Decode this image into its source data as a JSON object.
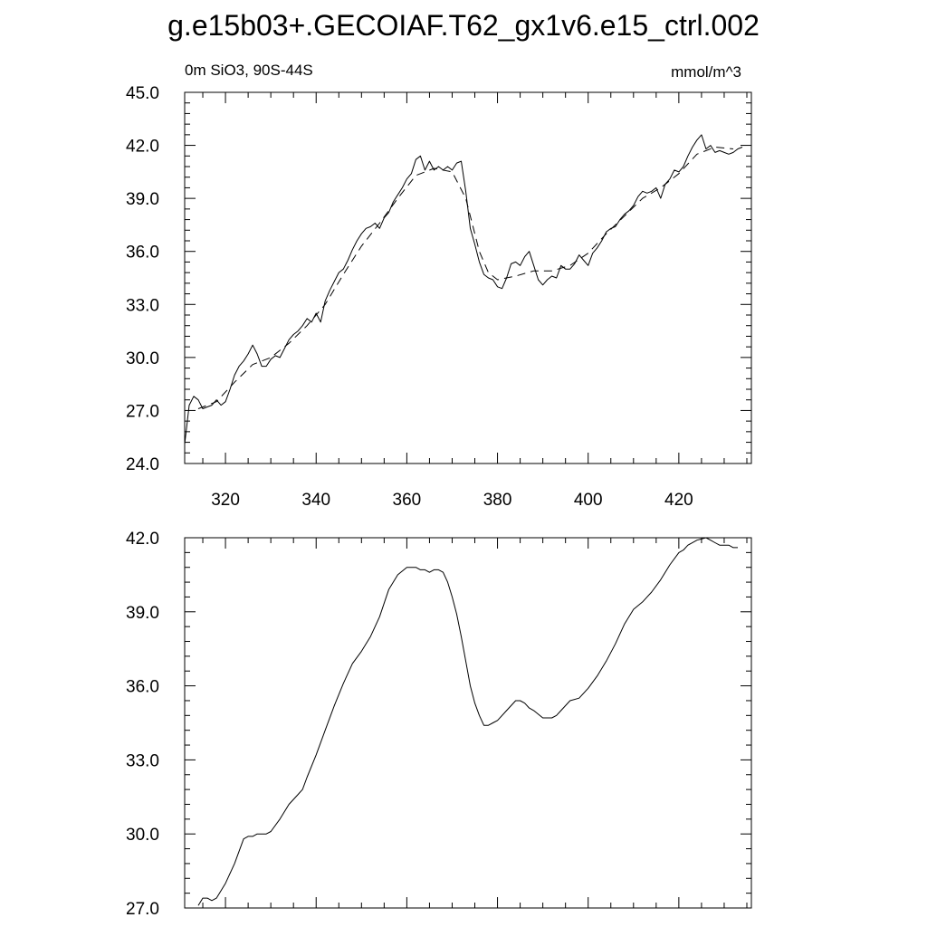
{
  "figure": {
    "title": "g.e15b03+.GECOIAF.T62_gx1v6.e15_ctrl.002"
  },
  "chart_data": [
    {
      "type": "line",
      "left_label": "0m SiO3, 90S-44S",
      "right_label": "mmol/m^3",
      "xlim": [
        311,
        436
      ],
      "ylim": [
        24,
        45
      ],
      "x_ticks": [
        320,
        340,
        360,
        380,
        400,
        420
      ],
      "x_tick_labels": [
        "320",
        "340",
        "360",
        "380",
        "400",
        "420"
      ],
      "y_ticks": [
        24,
        27,
        30,
        33,
        36,
        39,
        42,
        45
      ],
      "y_tick_labels": [
        "24.0",
        "27.0",
        "30.0",
        "33.0",
        "36.0",
        "39.0",
        "42.0",
        "45.0"
      ],
      "grid": false,
      "series": [
        {
          "style": "solid",
          "x": [
            311,
            312,
            313,
            314,
            315,
            316,
            317,
            318,
            319,
            320,
            321,
            322,
            323,
            324,
            325,
            326,
            327,
            328,
            329,
            330,
            331,
            332,
            333,
            334,
            335,
            336,
            337,
            338,
            339,
            340,
            341,
            342,
            343,
            344,
            345,
            346,
            347,
            348,
            349,
            350,
            351,
            352,
            353,
            354,
            355,
            356,
            357,
            358,
            359,
            360,
            361,
            362,
            363,
            364,
            365,
            366,
            367,
            368,
            369,
            370,
            371,
            372,
            373,
            374,
            375,
            376,
            377,
            378,
            379,
            380,
            381,
            382,
            383,
            384,
            385,
            386,
            387,
            388,
            389,
            390,
            391,
            392,
            393,
            394,
            395,
            396,
            397,
            398,
            399,
            400,
            401,
            402,
            403,
            404,
            405,
            406,
            407,
            408,
            409,
            410,
            411,
            412,
            413,
            414,
            415,
            416,
            417,
            418,
            419,
            420,
            421,
            422,
            423,
            424,
            425,
            426,
            427,
            428,
            429,
            430,
            431,
            432,
            433,
            434
          ],
          "y": [
            25.1,
            27.3,
            27.8,
            27.6,
            27.1,
            27.2,
            27.3,
            27.6,
            27.3,
            27.5,
            28.2,
            29.0,
            29.5,
            29.8,
            30.2,
            30.7,
            30.2,
            29.5,
            29.5,
            29.9,
            30.1,
            30.0,
            30.5,
            31.0,
            31.3,
            31.5,
            31.8,
            32.2,
            32.0,
            32.5,
            32.0,
            33.2,
            33.8,
            34.3,
            34.8,
            35.0,
            35.5,
            36.1,
            36.6,
            37.0,
            37.3,
            37.4,
            37.6,
            37.3,
            37.9,
            38.2,
            38.8,
            39.2,
            39.6,
            40.1,
            40.4,
            41.2,
            41.4,
            40.6,
            41.1,
            40.6,
            40.8,
            40.6,
            40.8,
            40.6,
            41.0,
            41.1,
            39.4,
            37.3,
            36.4,
            35.4,
            34.7,
            34.5,
            34.4,
            34.0,
            33.9,
            34.5,
            35.3,
            35.4,
            35.2,
            35.7,
            36.0,
            35.2,
            34.4,
            34.1,
            34.4,
            34.6,
            34.5,
            35.2,
            35.0,
            35.0,
            35.3,
            35.8,
            35.5,
            35.2,
            35.9,
            36.2,
            36.6,
            37.1,
            37.3,
            37.4,
            37.8,
            38.1,
            38.3,
            38.6,
            39.1,
            39.4,
            39.3,
            39.4,
            39.6,
            39.0,
            39.8,
            40.1,
            40.6,
            40.5,
            40.8,
            41.4,
            41.9,
            42.3,
            42.6,
            41.8,
            42.0,
            41.6,
            41.7,
            41.6,
            41.5,
            41.6,
            41.8,
            41.9
          ]
        },
        {
          "style": "dashed",
          "x": [
            314,
            318,
            322,
            326,
            330,
            334,
            338,
            342,
            346,
            350,
            354,
            358,
            362,
            366,
            370,
            373,
            376,
            378,
            380,
            384,
            388,
            392,
            396,
            400,
            404,
            408,
            412,
            416,
            420,
            424,
            428,
            432
          ],
          "y": [
            27.1,
            27.5,
            28.6,
            29.6,
            30.0,
            30.8,
            31.8,
            33.0,
            34.7,
            36.3,
            37.6,
            39.0,
            40.3,
            40.7,
            40.5,
            39.0,
            36.0,
            34.8,
            34.4,
            34.6,
            34.9,
            34.9,
            35.2,
            35.9,
            37.0,
            38.0,
            39.0,
            39.6,
            40.4,
            41.5,
            41.9,
            41.8
          ]
        }
      ]
    },
    {
      "type": "line",
      "xlim": [
        311,
        436
      ],
      "ylim": [
        27,
        42
      ],
      "x_ticks": [
        320,
        340,
        360,
        380,
        400,
        420
      ],
      "y_ticks": [
        27,
        30,
        33,
        36,
        39,
        42
      ],
      "y_tick_labels": [
        "27.0",
        "30.0",
        "33.0",
        "36.0",
        "39.0",
        "42.0"
      ],
      "grid": false,
      "series": [
        {
          "style": "solid",
          "x": [
            314,
            315,
            316,
            317,
            318,
            320,
            322,
            324,
            325,
            326,
            327,
            328,
            329,
            330,
            332,
            334,
            336,
            337,
            338,
            340,
            342,
            344,
            346,
            348,
            350,
            352,
            354,
            356,
            358,
            360,
            361,
            362,
            363,
            364,
            365,
            366,
            367,
            368,
            369,
            370,
            371,
            372,
            373,
            374,
            375,
            376,
            377,
            378,
            379,
            380,
            382,
            384,
            385,
            386,
            387,
            388,
            390,
            392,
            393,
            394,
            396,
            398,
            400,
            402,
            404,
            406,
            408,
            410,
            412,
            413,
            414,
            416,
            418,
            420,
            421,
            422,
            424,
            426,
            427,
            428,
            429,
            430,
            431,
            432,
            433
          ],
          "y": [
            27.1,
            27.4,
            27.4,
            27.3,
            27.4,
            28.0,
            28.8,
            29.8,
            29.9,
            29.9,
            30.0,
            30.0,
            30.0,
            30.1,
            30.6,
            31.2,
            31.6,
            31.8,
            32.3,
            33.2,
            34.2,
            35.2,
            36.1,
            36.9,
            37.4,
            38.0,
            38.8,
            39.9,
            40.5,
            40.8,
            40.8,
            40.8,
            40.7,
            40.7,
            40.6,
            40.7,
            40.7,
            40.6,
            40.2,
            39.6,
            38.9,
            38.0,
            37.0,
            36.0,
            35.3,
            34.8,
            34.4,
            34.4,
            34.5,
            34.6,
            35.0,
            35.4,
            35.4,
            35.3,
            35.1,
            35.0,
            34.7,
            34.7,
            34.8,
            35.0,
            35.4,
            35.5,
            35.9,
            36.4,
            37.0,
            37.7,
            38.5,
            39.1,
            39.4,
            39.6,
            39.8,
            40.3,
            40.9,
            41.4,
            41.5,
            41.7,
            41.9,
            42.0,
            41.9,
            41.8,
            41.7,
            41.7,
            41.7,
            41.6,
            41.6
          ]
        }
      ]
    }
  ]
}
